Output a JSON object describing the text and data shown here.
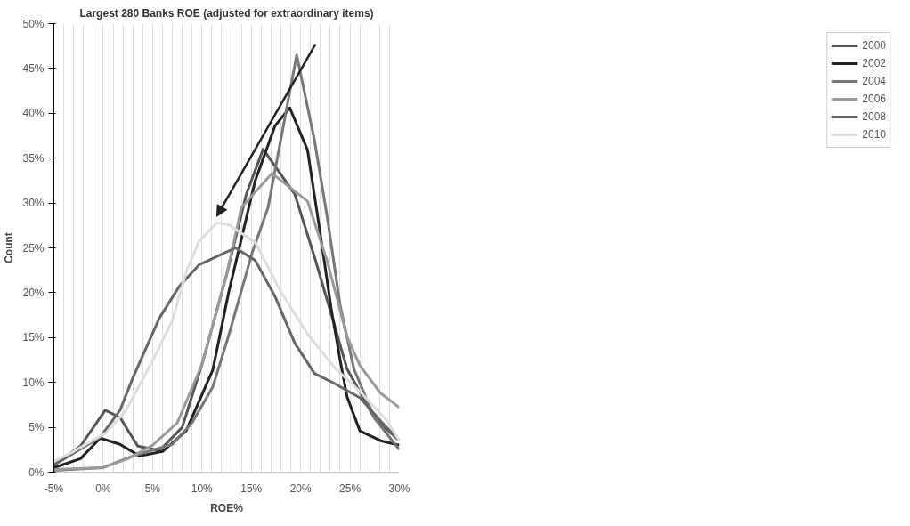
{
  "chart_data": {
    "type": "line",
    "title": "Largest 280 Banks ROE (adjusted for extraordinary items)",
    "xlabel": "ROE%",
    "ylabel": "Count",
    "xlim": [
      -5,
      30
    ],
    "ylim": [
      0,
      50
    ],
    "xticks": [
      {
        "value": -5,
        "label": "-5%"
      },
      {
        "value": -4,
        "label": null
      },
      {
        "value": -3,
        "label": null
      },
      {
        "value": -2,
        "label": null
      },
      {
        "value": -1,
        "label": null
      },
      {
        "value": 0,
        "label": "0%"
      },
      {
        "value": 1,
        "label": null
      },
      {
        "value": 2,
        "label": null
      },
      {
        "value": 3,
        "label": null
      },
      {
        "value": 4,
        "label": null
      },
      {
        "value": 5,
        "label": "5%"
      },
      {
        "value": 6,
        "label": null
      },
      {
        "value": 7,
        "label": null
      },
      {
        "value": 8,
        "label": null
      },
      {
        "value": 9,
        "label": null
      },
      {
        "value": 10,
        "label": "10%"
      },
      {
        "value": 11,
        "label": null
      },
      {
        "value": 12,
        "label": null
      },
      {
        "value": 13,
        "label": null
      },
      {
        "value": 14,
        "label": null
      },
      {
        "value": 15,
        "label": "15%"
      },
      {
        "value": 16,
        "label": null
      },
      {
        "value": 17,
        "label": null
      },
      {
        "value": 18,
        "label": null
      },
      {
        "value": 19,
        "label": null
      },
      {
        "value": 20,
        "label": "20%"
      },
      {
        "value": 21,
        "label": null
      },
      {
        "value": 22,
        "label": null
      },
      {
        "value": 23,
        "label": null
      },
      {
        "value": 24,
        "label": null
      },
      {
        "value": 25,
        "label": "25%"
      },
      {
        "value": 26,
        "label": null
      },
      {
        "value": 27,
        "label": null
      },
      {
        "value": 28,
        "label": null
      },
      {
        "value": 29,
        "label": null
      },
      {
        "value": 30,
        "label": "30%"
      }
    ],
    "yticks": [
      {
        "value": 0,
        "label": "0%"
      },
      {
        "value": 5,
        "label": "5%"
      },
      {
        "value": 10,
        "label": "10%"
      },
      {
        "value": 15,
        "label": "15%"
      },
      {
        "value": 20,
        "label": "20%"
      },
      {
        "value": 25,
        "label": "25%"
      },
      {
        "value": 30,
        "label": "30%"
      },
      {
        "value": 35,
        "label": "35%"
      },
      {
        "value": 40,
        "label": "40%"
      },
      {
        "value": 45,
        "label": "45%"
      },
      {
        "value": 50,
        "label": "50%"
      }
    ],
    "grid": "x",
    "legend": "right",
    "marker": "none",
    "line_style": "solid",
    "series": [
      {
        "name": "2000",
        "color": "#555555",
        "x": [
          -5,
          -2.3,
          0.2,
          1.7,
          3.5,
          5.7,
          8,
          10,
          12.5,
          14.5,
          16.2,
          19.4,
          21.4,
          23.4,
          24.7,
          27.5,
          30
        ],
        "values": [
          0.8,
          2.9,
          6.9,
          6.1,
          2.9,
          2.4,
          5,
          12,
          22,
          31,
          36,
          31,
          24,
          16.5,
          11.5,
          6,
          3.5
        ]
      },
      {
        "name": "2002",
        "color": "#222222",
        "x": [
          -5,
          -2.3,
          -0.3,
          1.7,
          3.7,
          6,
          8.4,
          11.1,
          12.7,
          15.4,
          17.4,
          18.9,
          20.7,
          22,
          23.1,
          24,
          24.7,
          26,
          28.1,
          30
        ],
        "values": [
          0.5,
          1.5,
          3.8,
          3.1,
          1.8,
          2.3,
          4.6,
          11.4,
          20,
          32.5,
          38.6,
          40.6,
          35.9,
          26.5,
          18.2,
          12.5,
          8.4,
          4.6,
          3.5,
          3
        ]
      },
      {
        "name": "2004",
        "color": "#777777",
        "x": [
          -5,
          0,
          3,
          7,
          9,
          11.1,
          12.7,
          15.1,
          16.7,
          19.6,
          21.4,
          22.7,
          24,
          25.4,
          27.5,
          30
        ],
        "values": [
          0.2,
          0.5,
          1.8,
          3.1,
          5.5,
          9.5,
          15.2,
          24.5,
          29.5,
          46.5,
          37,
          28.4,
          18.6,
          11.5,
          6,
          2.5
        ]
      },
      {
        "name": "2006",
        "color": "#9a9a9a",
        "x": [
          -5,
          0,
          2.5,
          5,
          7.5,
          10,
          12.5,
          14,
          17.1,
          20.7,
          22.7,
          24.7,
          26,
          28.1,
          30
        ],
        "values": [
          0.3,
          0.5,
          1.5,
          3,
          5.5,
          12,
          22,
          29.5,
          33.3,
          30.2,
          23.5,
          15.1,
          11.9,
          8.8,
          7.2
        ]
      },
      {
        "name": "2008",
        "color": "#666666",
        "x": [
          -5,
          -3.8,
          -0.3,
          1.7,
          3,
          5.7,
          7.7,
          9.7,
          13.4,
          15.4,
          17.4,
          19.4,
          21.4,
          23.4,
          26,
          28.1,
          30
        ],
        "values": [
          0.8,
          1.6,
          3.9,
          6.9,
          10.5,
          17.2,
          20.7,
          23.1,
          25,
          23.6,
          19.6,
          14.4,
          11,
          9.9,
          8.3,
          5.7,
          3.5
        ]
      },
      {
        "name": "2010",
        "color": "#dddddd",
        "x": [
          -5,
          -3,
          0.3,
          2.3,
          5,
          7,
          8.4,
          9.7,
          11.5,
          12.7,
          15.4,
          18,
          20.7,
          23.4,
          26,
          28.7,
          30
        ],
        "values": [
          1.2,
          2.3,
          4.4,
          6.9,
          12.4,
          16.9,
          22.3,
          25.7,
          27.8,
          27.6,
          25.6,
          20.1,
          15.4,
          11.7,
          9,
          5.8,
          3.5
        ]
      }
    ]
  }
}
